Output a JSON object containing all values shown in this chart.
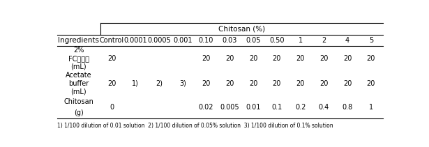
{
  "chitosan_header": "Chitosan (%)",
  "col_headers": [
    "Control",
    "0.0001",
    "0.0005",
    "0.001",
    "0.10",
    "0.03",
    "0.05",
    "0.50",
    "1",
    "2",
    "4",
    "5"
  ],
  "row_labels": [
    [
      "2%",
      "FC리포졸",
      "(mL)"
    ],
    [
      "Acetate",
      "buffer",
      "(mL)"
    ],
    [
      "Chitosan",
      "(g)"
    ]
  ],
  "row_data": [
    [
      "20",
      "",
      "",
      "",
      "20",
      "20",
      "20",
      "20",
      "20",
      "20",
      "20",
      "20"
    ],
    [
      "20",
      "1)",
      "2)",
      "3)",
      "20",
      "20",
      "20",
      "20",
      "20",
      "20",
      "20",
      "20"
    ],
    [
      "0",
      "",
      "",
      "",
      "0.02",
      "0.005",
      "0.01",
      "0.1",
      "0.2",
      "0.4",
      "0.8",
      "1"
    ]
  ],
  "footnote": "1) 1/100 dilution of 0.01 solution  2) 1/100 dilution of 0.05% solution  3) 1/100 dilution of 0.1% solution",
  "figsize": [
    6.15,
    2.11
  ],
  "dpi": 100
}
